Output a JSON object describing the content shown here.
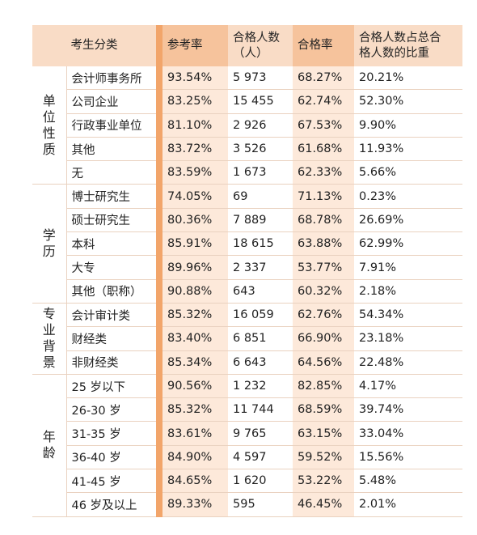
{
  "table": {
    "header": [
      "考生分类",
      "参考率",
      "合格人数\n（人）",
      "合格率",
      "合格人数占总合\n格人数的比重"
    ],
    "groups": [
      {
        "name": "单位性质",
        "rows": [
          [
            "会计师事务所",
            "93.54%",
            "5 973",
            "68.27%",
            "20.21%"
          ],
          [
            "公司企业",
            "83.25%",
            "15 455",
            "62.74%",
            "52.30%"
          ],
          [
            "行政事业单位",
            "81.10%",
            "2 926",
            "67.53%",
            "9.90%"
          ],
          [
            "其他",
            "83.72%",
            "3 526",
            "61.68%",
            "11.93%"
          ],
          [
            "无",
            "83.59%",
            "1 673",
            "62.33%",
            "5.66%"
          ]
        ]
      },
      {
        "name": "学历",
        "rows": [
          [
            "博士研究生",
            "74.05%",
            "69",
            "71.13%",
            "0.23%"
          ],
          [
            "硕士研究生",
            "80.36%",
            "7 889",
            "68.78%",
            "26.69%"
          ],
          [
            "本科",
            "85.91%",
            "18 615",
            "63.88%",
            "62.99%"
          ],
          [
            "大专",
            "89.96%",
            "2 337",
            "53.77%",
            "7.91%"
          ],
          [
            "其他（职称）",
            "90.88%",
            "643",
            "60.32%",
            "2.18%"
          ]
        ]
      },
      {
        "name": "专业背景",
        "rows": [
          [
            "会计审计类",
            "85.32%",
            "16 059",
            "62.76%",
            "54.34%"
          ],
          [
            "财经类",
            "83.40%",
            "6 851",
            "66.90%",
            "23.18%"
          ],
          [
            "非财经类",
            "85.34%",
            "6 643",
            "64.56%",
            "22.48%"
          ]
        ]
      },
      {
        "name": "年龄",
        "rows": [
          [
            "25 岁以下",
            "90.56%",
            "1 232",
            "82.85%",
            "4.17%"
          ],
          [
            "26-30 岁",
            "85.32%",
            "11 744",
            "68.59%",
            "39.74%"
          ],
          [
            "31-35 岁",
            "83.61%",
            "9 765",
            "63.15%",
            "33.04%"
          ],
          [
            "36-40 岁",
            "84.90%",
            "4 597",
            "59.52%",
            "15.56%"
          ],
          [
            "41-45 岁",
            "84.65%",
            "1 620",
            "53.22%",
            "5.48%"
          ],
          [
            "46 岁及以上",
            "89.33%",
            "595",
            "46.45%",
            "2.01%"
          ]
        ]
      }
    ]
  }
}
